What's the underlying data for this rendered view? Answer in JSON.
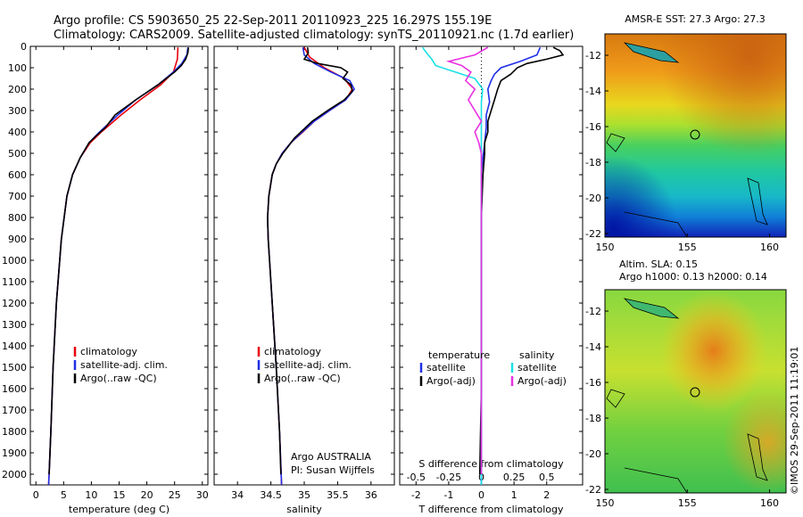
{
  "header": {
    "line1": "Argo profile: CS 5903650_25 22-Sep-2011 20110923_225 16.297S 155.19E",
    "line2": "Climatology: CARS2009. Satellite-adjusted climatology: synTS_20110921.nc (1.7d earlier)"
  },
  "colors": {
    "climatology": "#e8000b",
    "satellite": "#1f2fe6",
    "argo": "#000000",
    "satellite_s": "#19e0e8",
    "argo_s": "#e830e0"
  },
  "depth_axis": {
    "ticks": [
      0,
      100,
      200,
      300,
      400,
      500,
      600,
      700,
      800,
      900,
      1000,
      1100,
      1200,
      1300,
      1400,
      1500,
      1600,
      1700,
      1800,
      1900,
      2000
    ],
    "max": 2050
  },
  "chart_data": [
    {
      "type": "line",
      "name": "temperature",
      "xlabel": "temperature (deg C)",
      "xlim": [
        -1,
        31
      ],
      "xticks": [
        0,
        5,
        10,
        15,
        20,
        25,
        30
      ],
      "legend": [
        "climatology",
        "satellite-adj. clim.",
        "Argo(..raw -QC)"
      ],
      "series": [
        {
          "name": "climatology",
          "depth": [
            5,
            60,
            120,
            180,
            250,
            320,
            400,
            450,
            520,
            600,
            700,
            900,
            1200,
            1500,
            1800,
            2050
          ],
          "values": [
            25.6,
            25.5,
            24.8,
            22.5,
            18.8,
            15.4,
            11.8,
            9.8,
            8.0,
            6.6,
            5.6,
            4.6,
            3.7,
            3.1,
            2.7,
            2.3
          ]
        },
        {
          "name": "satellite-adj. clim.",
          "depth": [
            5,
            40,
            80,
            120,
            180,
            250,
            320,
            400,
            450,
            520,
            600,
            700,
            900,
            1200,
            1500,
            1800,
            2050
          ],
          "values": [
            27.4,
            27.2,
            26.3,
            24.8,
            22.0,
            18.0,
            14.8,
            11.5,
            9.6,
            8.0,
            6.6,
            5.6,
            4.6,
            3.7,
            3.1,
            2.7,
            2.3
          ]
        },
        {
          "name": "Argo(..raw -QC)",
          "depth": [
            5,
            30,
            60,
            90,
            120,
            180,
            250,
            320,
            380,
            420,
            450,
            520,
            600,
            700,
            900,
            1200,
            1500,
            1800,
            2000
          ],
          "values": [
            27.5,
            27.4,
            27.0,
            26.2,
            25.0,
            22.0,
            18.0,
            14.3,
            12.5,
            10.8,
            9.6,
            8.0,
            6.6,
            5.6,
            4.6,
            3.7,
            3.1,
            2.7,
            2.4
          ]
        }
      ]
    },
    {
      "type": "line",
      "name": "salinity",
      "xlabel": "salinity",
      "xlim": [
        33.65,
        36.35
      ],
      "xticks": [
        34,
        34.5,
        35,
        35.5,
        36
      ],
      "xticklabels": [
        "34",
        "34.5",
        "35",
        "35.5",
        "36"
      ],
      "legend": [
        "climatology",
        "satellite-adj. clim.",
        "Argo(..raw -QC)"
      ],
      "annotation": [
        "Argo AUSTRALIA",
        "PI: Susan Wijffels"
      ],
      "series": [
        {
          "name": "climatology",
          "depth": [
            5,
            50,
            100,
            150,
            200,
            250,
            300,
            350,
            400,
            450,
            500,
            550,
            600,
            700,
            800,
            900,
            1000,
            1200,
            1500,
            1800,
            2050
          ],
          "values": [
            35.0,
            35.08,
            35.3,
            35.6,
            35.72,
            35.62,
            35.38,
            35.15,
            34.98,
            34.8,
            34.67,
            34.58,
            34.52,
            34.47,
            34.45,
            34.46,
            34.48,
            34.52,
            34.58,
            34.63,
            34.66
          ]
        },
        {
          "name": "satellite-adj. clim.",
          "depth": [
            5,
            40,
            80,
            120,
            160,
            200,
            250,
            300,
            350,
            400,
            450,
            500,
            550,
            600,
            700,
            800,
            900,
            1000,
            1200,
            1500,
            1800,
            2050
          ],
          "values": [
            34.98,
            35.0,
            35.15,
            35.4,
            35.68,
            35.75,
            35.62,
            35.38,
            35.15,
            34.97,
            34.8,
            34.67,
            34.58,
            34.52,
            34.47,
            34.45,
            34.46,
            34.48,
            34.52,
            34.58,
            34.63,
            34.66
          ]
        },
        {
          "name": "Argo(..raw -QC)",
          "depth": [
            5,
            30,
            60,
            80,
            100,
            120,
            150,
            180,
            210,
            250,
            300,
            350,
            400,
            430,
            460,
            500,
            550,
            600,
            700,
            800,
            900,
            1000,
            1200,
            1500,
            1800,
            2000
          ],
          "values": [
            35.05,
            35.06,
            35.0,
            35.2,
            35.55,
            35.65,
            35.58,
            35.7,
            35.72,
            35.6,
            35.35,
            35.12,
            34.95,
            34.85,
            34.78,
            34.68,
            34.58,
            34.52,
            34.47,
            34.45,
            34.46,
            34.48,
            34.52,
            34.58,
            34.63,
            34.65
          ]
        }
      ]
    },
    {
      "type": "line",
      "name": "differences",
      "xlabel_top": "S difference from climatology",
      "xlabel": "T difference from climatology",
      "xlim": [
        -2.5,
        3.1
      ],
      "tticks": [
        -2,
        -1,
        0,
        1,
        2
      ],
      "sticks": [
        -0.5,
        -0.25,
        0,
        0.25,
        0.5
      ],
      "sticklabels": [
        "-0.5",
        "-0.25",
        "0",
        "0.25",
        "0.5"
      ],
      "legend_headers": [
        "temperature",
        "salinity"
      ],
      "legend": [
        "satellite",
        "Argo(-adj)",
        "satellite",
        "Argo(-adj)"
      ],
      "series": [
        {
          "name": "T satellite",
          "depth": [
            5,
            40,
            70,
            100,
            130,
            160,
            200,
            260,
            320,
            380,
            450,
            520,
            600,
            800,
            1200,
            1600,
            2050
          ],
          "values": [
            1.8,
            1.7,
            1.2,
            0.6,
            0.4,
            0.3,
            0.2,
            0.25,
            0.15,
            0.15,
            0.1,
            0.05,
            0.0,
            0.0,
            0.0,
            0.0,
            0.0
          ]
        },
        {
          "name": "T Argo(-adj)",
          "depth": [
            5,
            20,
            40,
            60,
            80,
            100,
            130,
            160,
            200,
            250,
            300,
            350,
            400,
            450,
            500,
            600,
            800,
            1200,
            1600,
            2000
          ],
          "values": [
            2.2,
            2.4,
            2.5,
            2.0,
            1.4,
            1.1,
            0.9,
            0.6,
            0.5,
            0.4,
            0.3,
            0.2,
            0.2,
            0.1,
            0.1,
            0.05,
            0.0,
            0.0,
            0.0,
            -0.05
          ]
        },
        {
          "name": "S satellite",
          "depth": [
            5,
            30,
            60,
            90,
            120,
            150,
            200,
            260,
            320,
            400,
            500,
            600,
            800,
            1200,
            1600,
            2050
          ],
          "values": [
            -0.45,
            -0.42,
            -0.38,
            -0.35,
            -0.2,
            -0.05,
            0.01,
            0.0,
            0.0,
            0.0,
            0.0,
            0.0,
            0.0,
            0.0,
            0.0,
            0.0
          ]
        },
        {
          "name": "S Argo(-adj)",
          "depth": [
            5,
            40,
            70,
            90,
            120,
            160,
            200,
            250,
            300,
            350,
            400,
            450,
            500,
            600,
            800,
            1200,
            1600,
            2000
          ],
          "values": [
            0.05,
            -0.05,
            -0.25,
            -0.15,
            -0.08,
            -0.12,
            -0.05,
            -0.1,
            -0.05,
            0.0,
            -0.05,
            -0.02,
            0.0,
            0.0,
            0.0,
            0.0,
            0.0,
            0.0
          ]
        }
      ]
    },
    {
      "type": "heatmap",
      "name": "sst-map",
      "title": "AMSR-E SST: 27.3  Argo: 27.3",
      "xlim": [
        150,
        161
      ],
      "ylim": [
        -22.2,
        -10.8
      ],
      "xticks": [
        150,
        155,
        160
      ],
      "yticks": [
        -12,
        -14,
        -16,
        -18,
        -20,
        -22
      ],
      "marker": {
        "lon": 155.19,
        "lat": -16.297
      }
    },
    {
      "type": "heatmap",
      "name": "sla-map",
      "title": [
        "Altim. SLA: 0.15",
        "Argo h1000: 0.13 h2000: 0.14"
      ],
      "xlim": [
        150,
        161
      ],
      "ylim": [
        -22.2,
        -10.8
      ],
      "xticks": [
        150,
        155,
        160
      ],
      "yticks": [
        -12,
        -14,
        -16,
        -18,
        -20,
        -22
      ],
      "marker": {
        "lon": 155.19,
        "lat": -16.297
      }
    }
  ],
  "credit": "©IMOS 29-Sep-2011 11:19:01"
}
